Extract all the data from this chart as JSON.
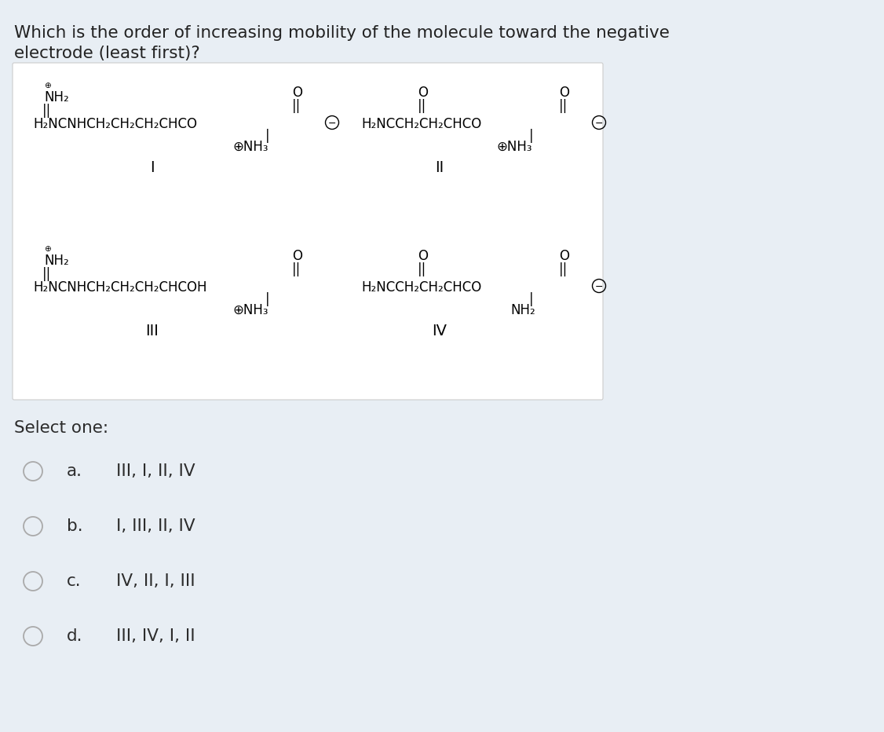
{
  "background_color": "#e8eef4",
  "box_bg": "#ffffff",
  "title_line1": "Which is the order of increasing mobility of the molecule toward the negative",
  "title_line2": "electrode (least first)?",
  "title_fontsize": 15.5,
  "title_color": "#222222",
  "select_label": "Select one:",
  "select_fontsize": 15.5,
  "options": [
    {
      "label": "a.",
      "text": "III, I, II, IV"
    },
    {
      "label": "b.",
      "text": "I, III, II, IV"
    },
    {
      "label": "c.",
      "text": "IV, II, I, III"
    },
    {
      "label": "d.",
      "text": "III, IV, I, II"
    }
  ],
  "option_fontsize": 15.5,
  "text_color": "#2c2c2c",
  "mol_fontsize": 12.0
}
